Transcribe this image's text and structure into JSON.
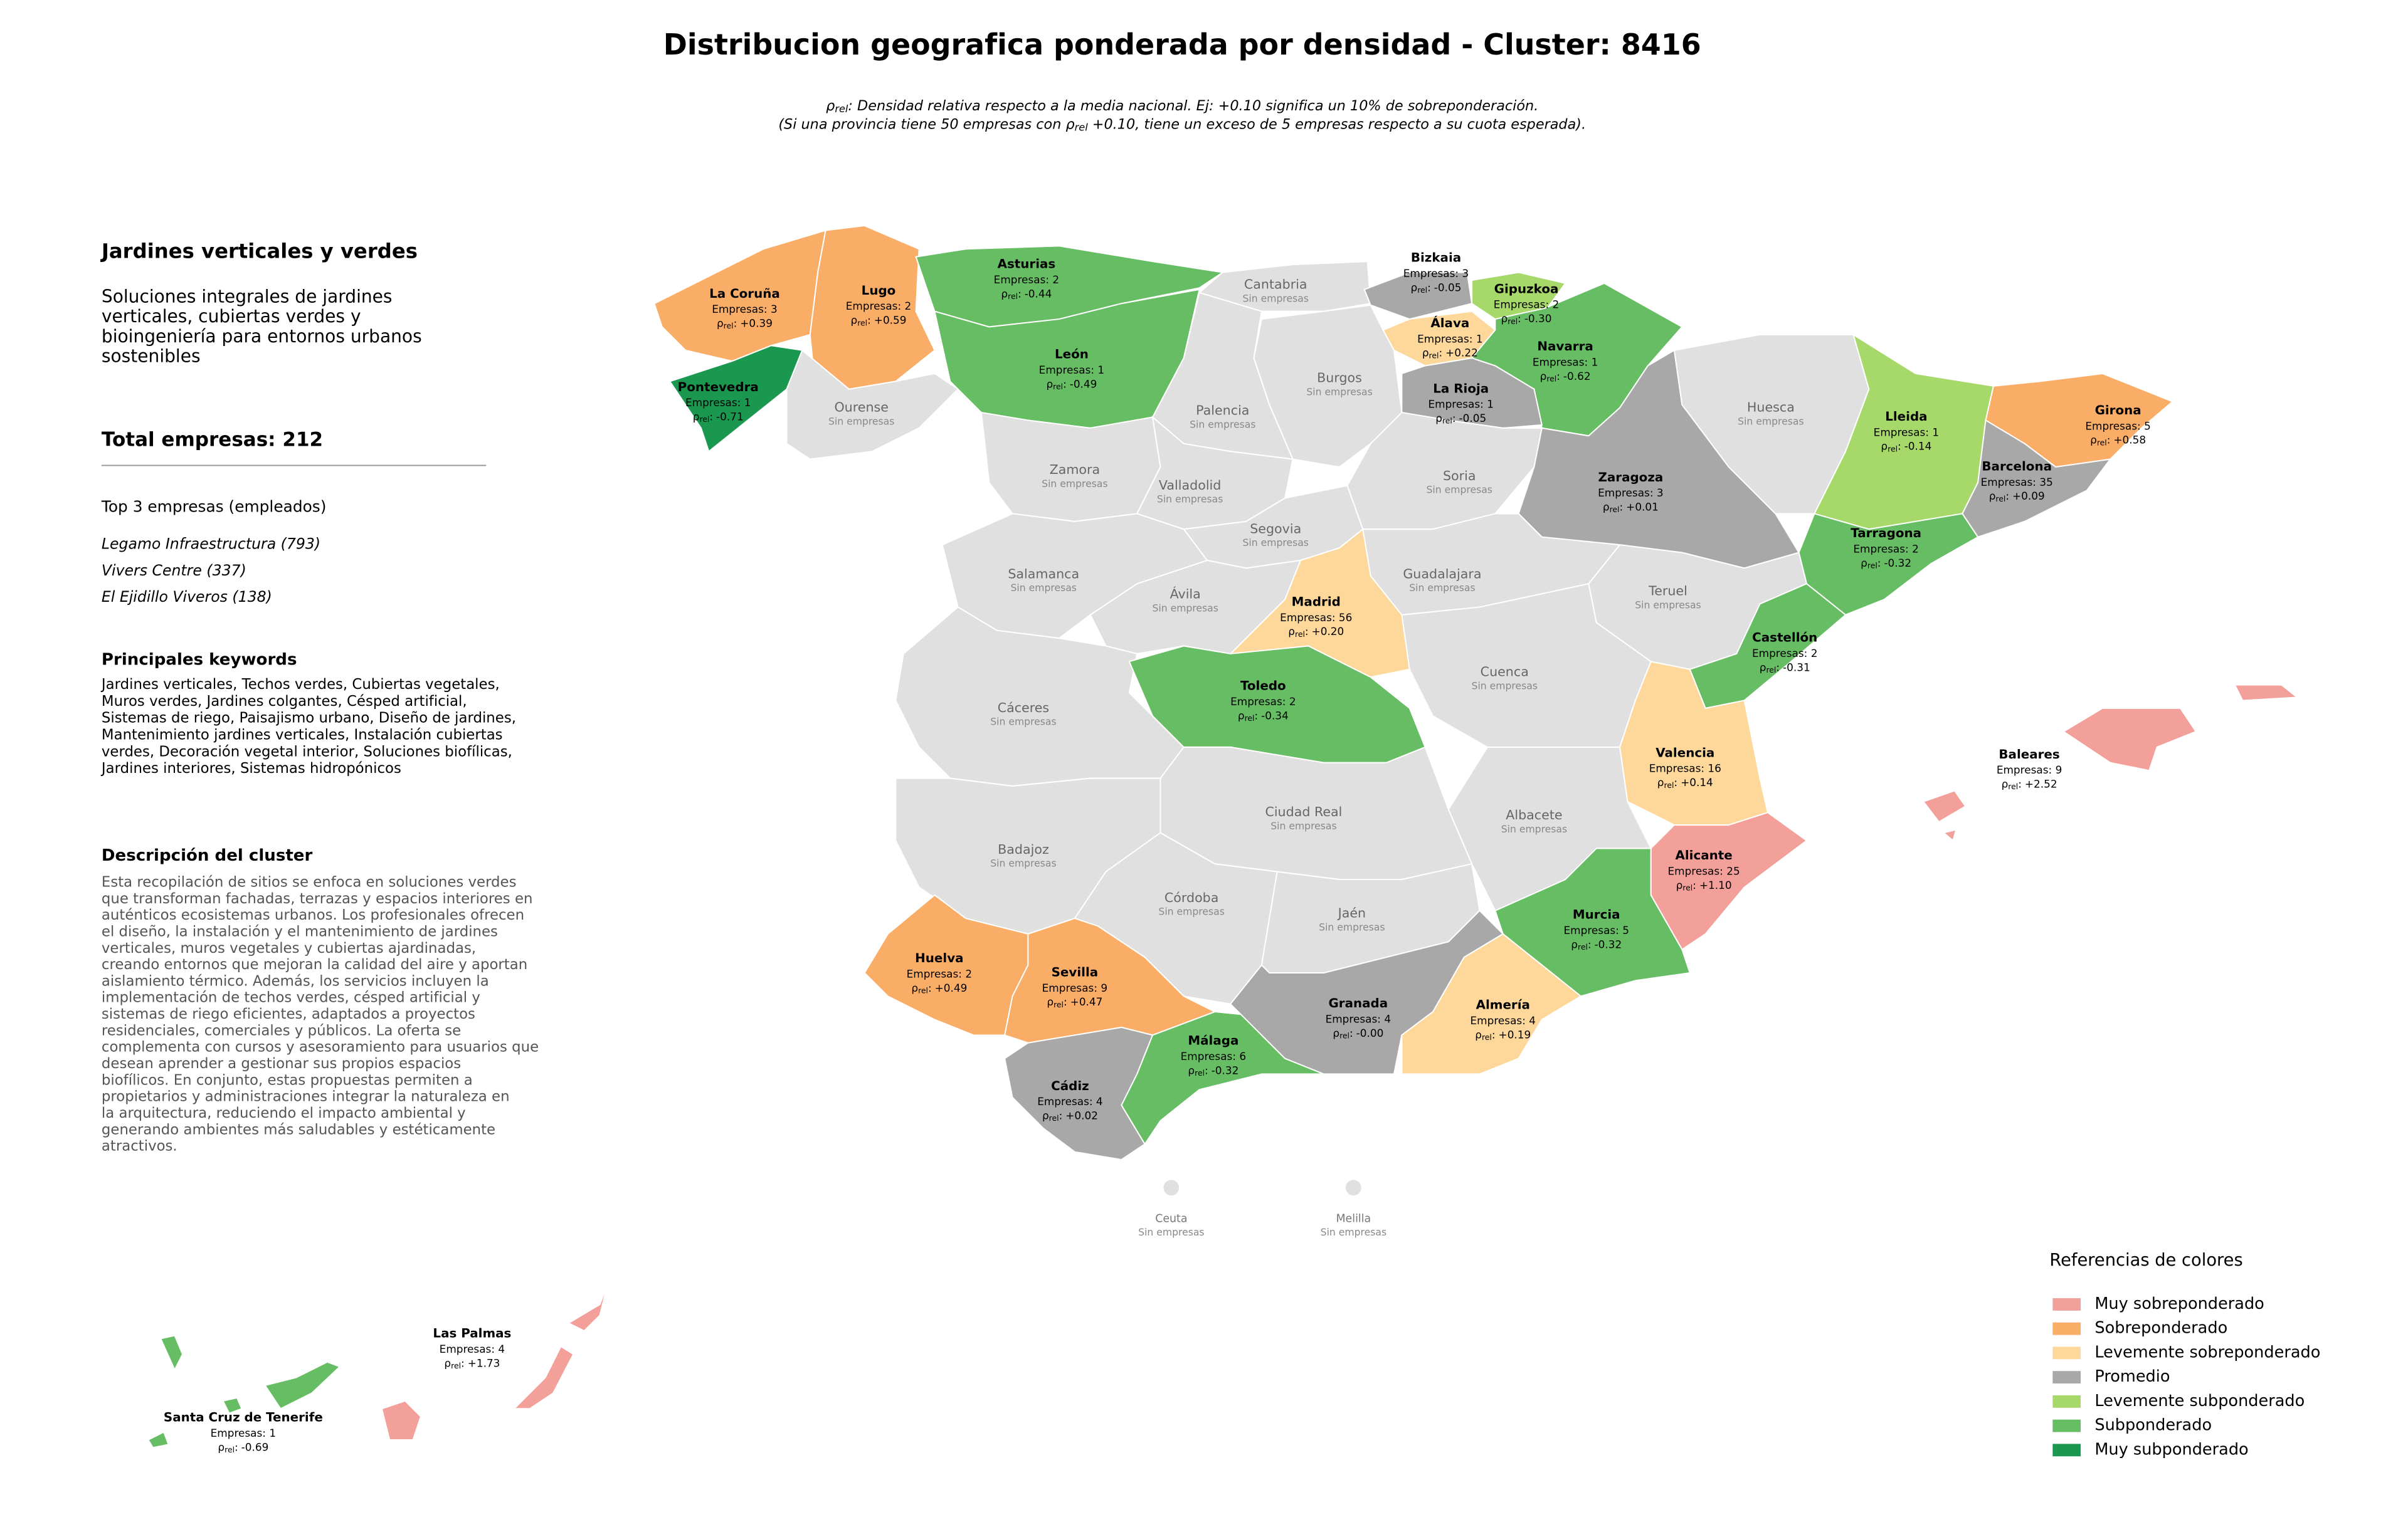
{
  "title": "Distribucion geografica ponderada por densidad - Cluster: 8416",
  "rho_symbol": "ρ",
  "rho_sub": "rel",
  "rho_sep": ":",
  "subtitle": [
    {
      "after": ": Densidad relativa respecto a la media nacional. Ej: +0.10 significa un 10% de sobreponderación."
    },
    {
      "before": "(Si una provincia tiene 50 empresas con ",
      "after": " +0.10, tiene un exceso de 5 empresas respecto a su cuota esperada)."
    }
  ],
  "sidebar": {
    "title": "Jardines verticales y verdes",
    "summary": [
      "Soluciones integrales de jardines",
      "verticales, cubiertas verdes y",
      "bioingeniería para entornos urbanos",
      "sostenibles"
    ],
    "total": "Total empresas: 212",
    "top_heading": "Top 3 empresas (empleados)",
    "top_companies": [
      "Legamo Infraestructura (793)",
      "Vivers Centre (337)",
      "El Ejidillo Viveros (138)"
    ],
    "keywords_heading": "Principales keywords",
    "keywords": [
      "Jardines verticales, Techos verdes, Cubiertas vegetales,",
      "Muros verdes, Jardines colgantes, Césped artificial,",
      "Sistemas de riego, Paisajismo urbano, Diseño de jardines,",
      "Mantenimiento jardines verticales, Instalación cubiertas",
      "verdes, Decoración vegetal interior, Soluciones biofílicas,",
      "Jardines interiores, Sistemas hidropónicos"
    ],
    "description_heading": "Descripción del cluster",
    "description": [
      "Esta recopilación de sitios se enfoca en soluciones verdes",
      "que transforman fachadas, terrazas y espacios interiores en",
      "auténticos ecosistemas urbanos. Los profesionales ofrecen",
      "el diseño, la instalación y el mantenimiento de jardines",
      "verticales, muros vegetales y cubiertas ajardinadas,",
      "creando entornos que mejoran la calidad del aire y aportan",
      "aislamiento térmico. Además, los servicios incluyen la",
      "implementación de techos verdes, césped artificial y",
      "sistemas de riego eficientes, adaptados a proyectos",
      "residenciales, comerciales y públicos. La oferta se",
      "complementa con cursos y asesoramiento para usuarios que",
      "desean aprender a gestionar sus propios espacios",
      "biofílicos. En conjunto, estas propuestas permiten a",
      "propietarios y administraciones integrar la naturaleza en",
      "la arquitectura, reduciendo el impacto ambiental y",
      "generando ambientes más saludables y estéticamente",
      "atractivos."
    ]
  },
  "provinces": [
    {
      "name": "La Coruña",
      "empresas": "Empresas: 3",
      "rho": "+0.39",
      "color": "#f9ad66"
    },
    {
      "name": "Lugo",
      "empresas": "Empresas: 2",
      "rho": "+0.59",
      "color": "#f9ad66"
    },
    {
      "name": "Pontevedra",
      "empresas": "Empresas: 1",
      "rho": "-0.71",
      "color": "#1a9850"
    },
    {
      "name": "Ourense",
      "status": "Sin empresas",
      "color": "#e0e0e0"
    },
    {
      "name": "Asturias",
      "empresas": "Empresas: 2",
      "rho": "-0.44",
      "color": "#66bd63"
    },
    {
      "name": "Cantabria",
      "status": "Sin empresas",
      "color": "#e0e0e0"
    },
    {
      "name": "León",
      "empresas": "Empresas: 1",
      "rho": "-0.49",
      "color": "#66bd63"
    },
    {
      "name": "Bizkaia",
      "empresas": "Empresas: 3",
      "rho": "-0.05",
      "color": "#a8a8a8"
    },
    {
      "name": "Gipuzkoa",
      "empresas": "Empresas: 2",
      "rho": "-0.30",
      "color": "#a6d96a"
    },
    {
      "name": "Álava",
      "empresas": "Empresas: 1",
      "rho": "+0.22",
      "color": "#fdd89a"
    },
    {
      "name": "Navarra",
      "empresas": "Empresas: 1",
      "rho": "-0.62",
      "color": "#66bd63"
    },
    {
      "name": "La Rioja",
      "empresas": "Empresas: 1",
      "rho": "-0.05",
      "color": "#a8a8a8"
    },
    {
      "name": "Burgos",
      "status": "Sin empresas",
      "color": "#e0e0e0"
    },
    {
      "name": "Palencia",
      "status": "Sin empresas",
      "color": "#e0e0e0"
    },
    {
      "name": "Zamora",
      "status": "Sin empresas",
      "color": "#e0e0e0"
    },
    {
      "name": "Valladolid",
      "status": "Sin empresas",
      "color": "#e0e0e0"
    },
    {
      "name": "Soria",
      "status": "Sin empresas",
      "color": "#e0e0e0"
    },
    {
      "name": "Zaragoza",
      "empresas": "Empresas: 3",
      "rho": "+0.01",
      "color": "#a8a8a8"
    },
    {
      "name": "Huesca",
      "status": "Sin empresas",
      "color": "#e0e0e0"
    },
    {
      "name": "Lleida",
      "empresas": "Empresas: 1",
      "rho": "-0.14",
      "color": "#a6d96a"
    },
    {
      "name": "Girona",
      "empresas": "Empresas: 5",
      "rho": "+0.58",
      "color": "#f9ad66"
    },
    {
      "name": "Barcelona",
      "empresas": "Empresas: 35",
      "rho": "+0.09",
      "color": "#a8a8a8"
    },
    {
      "name": "Tarragona",
      "empresas": "Empresas: 2",
      "rho": "-0.32",
      "color": "#66bd63"
    },
    {
      "name": "Teruel",
      "status": "Sin empresas",
      "color": "#e0e0e0"
    },
    {
      "name": "Castellón",
      "empresas": "Empresas: 2",
      "rho": "-0.31",
      "color": "#66bd63"
    },
    {
      "name": "Valencia",
      "empresas": "Empresas: 16",
      "rho": "+0.14",
      "color": "#fdd89a"
    },
    {
      "name": "Alicante",
      "empresas": "Empresas: 25",
      "rho": "+1.10",
      "color": "#f4a09a"
    },
    {
      "name": "Murcia",
      "empresas": "Empresas: 5",
      "rho": "-0.32",
      "color": "#66bd63"
    },
    {
      "name": "Albacete",
      "status": "Sin empresas",
      "color": "#e0e0e0"
    },
    {
      "name": "Cuenca",
      "status": "Sin empresas",
      "color": "#e0e0e0"
    },
    {
      "name": "Guadalajara",
      "status": "Sin empresas",
      "color": "#e0e0e0"
    },
    {
      "name": "Segovia",
      "status": "Sin empresas",
      "color": "#e0e0e0"
    },
    {
      "name": "Madrid",
      "empresas": "Empresas: 56",
      "rho": "+0.20",
      "color": "#fdd89a"
    },
    {
      "name": "Ávila",
      "status": "Sin empresas",
      "color": "#e0e0e0"
    },
    {
      "name": "Salamanca",
      "status": "Sin empresas",
      "color": "#e0e0e0"
    },
    {
      "name": "Cáceres",
      "status": "Sin empresas",
      "color": "#e0e0e0"
    },
    {
      "name": "Toledo",
      "empresas": "Empresas: 2",
      "rho": "-0.34",
      "color": "#66bd63"
    },
    {
      "name": "Ciudad Real",
      "status": "Sin empresas",
      "color": "#e0e0e0"
    },
    {
      "name": "Badajoz",
      "status": "Sin empresas",
      "color": "#e0e0e0"
    },
    {
      "name": "Córdoba",
      "status": "Sin empresas",
      "color": "#e0e0e0"
    },
    {
      "name": "Jaén",
      "status": "Sin empresas",
      "color": "#e0e0e0"
    },
    {
      "name": "Huelva",
      "empresas": "Empresas: 2",
      "rho": "+0.49",
      "color": "#f9ad66"
    },
    {
      "name": "Sevilla",
      "empresas": "Empresas: 9",
      "rho": "+0.47",
      "color": "#f9ad66"
    },
    {
      "name": "Cádiz",
      "empresas": "Empresas: 4",
      "rho": "+0.02",
      "color": "#a8a8a8"
    },
    {
      "name": "Málaga",
      "empresas": "Empresas: 6",
      "rho": "-0.32",
      "color": "#66bd63"
    },
    {
      "name": "Granada",
      "empresas": "Empresas: 4",
      "rho": "-0.00",
      "color": "#a8a8a8"
    },
    {
      "name": "Almería",
      "empresas": "Empresas: 4",
      "rho": "+0.19",
      "color": "#fdd89a"
    },
    {
      "name": "Baleares",
      "empresas": "Empresas: 9",
      "rho": "+2.52",
      "color": "#f4a09a"
    },
    {
      "name": "Las Palmas",
      "empresas": "Empresas: 4",
      "rho": "+1.73",
      "color": "#f4a09a"
    },
    {
      "name": "Santa Cruz de Tenerife",
      "empresas": "Empresas: 1",
      "rho": "-0.69",
      "color": "#66bd63"
    },
    {
      "name": "Ceuta",
      "status": "Sin empresas",
      "color": "#e0e0e0"
    },
    {
      "name": "Melilla",
      "status": "Sin empresas",
      "color": "#e0e0e0"
    }
  ],
  "legend": {
    "title": "Referencias de colores",
    "items": [
      {
        "label": "Muy sobreponderado",
        "color": "#f4a09a"
      },
      {
        "label": "Sobreponderado",
        "color": "#f9ad66"
      },
      {
        "label": "Levemente sobreponderado",
        "color": "#fdd89a"
      },
      {
        "label": "Promedio",
        "color": "#a8a8a8"
      },
      {
        "label": "Levemente subponderado",
        "color": "#a6d96a"
      },
      {
        "label": "Subponderado",
        "color": "#66bd63"
      },
      {
        "label": "Muy subponderado",
        "color": "#1a9850"
      }
    ]
  }
}
